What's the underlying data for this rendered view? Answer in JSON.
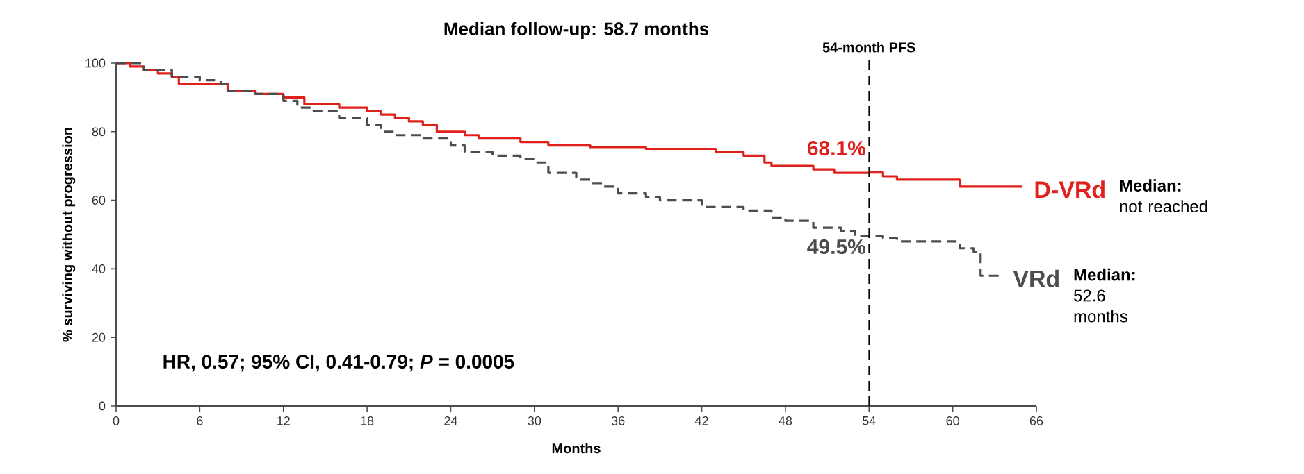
{
  "chart_data": {
    "type": "step",
    "title": "Median follow-up: 58.7 months",
    "xlabel": "Months",
    "ylabel": "% surviving without progression",
    "xlim": [
      0,
      66
    ],
    "xticks": [
      0,
      6,
      12,
      18,
      24,
      30,
      36,
      42,
      48,
      54,
      60,
      66
    ],
    "ylim": [
      0,
      100
    ],
    "yticks": [
      0,
      20,
      40,
      60,
      80,
      100
    ],
    "grid": false,
    "legend": false,
    "series": [
      {
        "name": "D-VRd",
        "color": "#e0201b",
        "line_style": "solid",
        "x": [
          0,
          1,
          2,
          3,
          4,
          4.5,
          7,
          8,
          10,
          12,
          13.5,
          16,
          18,
          19,
          20,
          21,
          22,
          23,
          25,
          26,
          29,
          31,
          34,
          38,
          43,
          45,
          46.5,
          47,
          50,
          51.5,
          54,
          55,
          56,
          60,
          60.5,
          65
        ],
        "values": [
          100,
          99,
          98,
          97,
          96,
          94,
          94,
          92,
          91,
          90,
          88,
          87,
          86,
          85,
          84,
          83,
          82,
          80,
          79,
          78,
          77,
          76,
          75.5,
          75,
          74,
          73,
          71,
          70,
          69,
          68,
          68.1,
          67,
          66,
          66,
          64,
          64
        ]
      },
      {
        "name": "VRd",
        "color": "#4d4d4d",
        "line_style": "dashed",
        "x": [
          0,
          2,
          4,
          6,
          7.5,
          8,
          10,
          12,
          13,
          14,
          16,
          18,
          19,
          20,
          22,
          24,
          25,
          27,
          29,
          30,
          31,
          33,
          34,
          35,
          36,
          38,
          39,
          42,
          45,
          47,
          48,
          50,
          52,
          53,
          54,
          55,
          56,
          60,
          60.5,
          61.5,
          62,
          63.5
        ],
        "values": [
          100,
          98,
          96,
          95,
          94,
          92,
          91,
          89,
          87,
          86,
          84,
          82,
          80,
          79,
          78,
          76,
          74,
          73,
          72,
          71,
          68,
          66,
          65,
          64,
          62,
          61,
          60,
          58,
          57,
          55,
          54,
          52,
          51,
          49.5,
          49.5,
          49,
          48,
          48,
          46,
          45,
          38,
          38
        ]
      }
    ],
    "ref_lines": [
      {
        "axis": "x",
        "value": 54,
        "label": "54-month PFS",
        "line_style": "dashed",
        "color": "#000000"
      }
    ],
    "annotations": [
      {
        "text": "68.1%",
        "x": 54,
        "y": 68.1
      },
      {
        "text": "49.5%",
        "x": 54,
        "y": 49.5
      },
      "**Median:** not reached",
      "**Median:** 52.6 months",
      "HR, 0.57; 95% CI, 0.41-0.79; *P* = 0.0005"
    ]
  }
}
